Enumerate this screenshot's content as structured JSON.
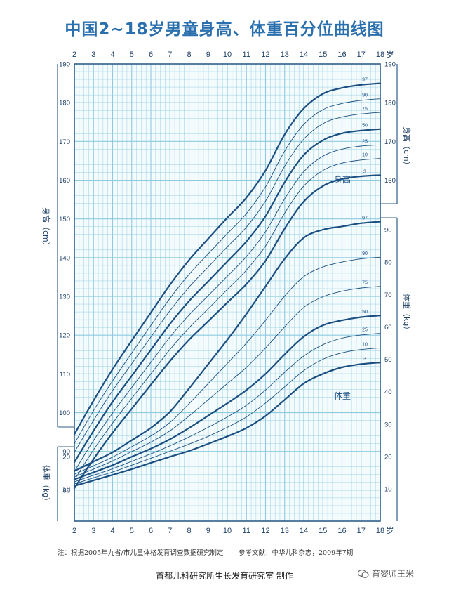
{
  "title": "中国2~18岁男童身高、体重百分位曲线图",
  "note": "注：根据2005年九省/市儿童体格发育调查数据研究制定",
  "reference": "参考文献：中华儿科杂志，2009年7期",
  "producer": "首都儿科研究所生长发育研究室  制作",
  "watermark": "育婴师王米",
  "chart_data": {
    "type": "line",
    "x_ticks": [
      "2",
      "3",
      "4",
      "5",
      "6",
      "7",
      "8",
      "9",
      "10",
      "11",
      "12",
      "13",
      "14",
      "15",
      "16",
      "17",
      "18"
    ],
    "x_unit": "岁",
    "height_axis": {
      "label": "身高",
      "unit": "（cm）",
      "range": [
        72,
        190
      ],
      "ticks": [
        "80",
        "90",
        "100",
        "110",
        "120",
        "130",
        "140",
        "150",
        "160",
        "170",
        "180",
        "190"
      ]
    },
    "weight_axis": {
      "label": "体重",
      "unit": "（kg）",
      "range": [
        0,
        100
      ],
      "ticks": [
        "10",
        "20",
        "30",
        "40",
        "50",
        "60",
        "70",
        "80",
        "90"
      ]
    },
    "height_label": "身高",
    "weight_label": "体重",
    "ages": [
      2,
      3,
      4,
      5,
      6,
      7,
      8,
      9,
      10,
      11,
      12,
      13,
      14,
      15,
      16,
      17,
      18
    ],
    "height_series": [
      {
        "name": "97",
        "major": true,
        "values": [
          94.4,
          103.1,
          111.2,
          118.6,
          125.8,
          133.0,
          139.4,
          144.9,
          150.3,
          155.5,
          162.5,
          171.8,
          178.5,
          182.3,
          183.8,
          184.6,
          185.0
        ]
      },
      {
        "name": "90",
        "major": false,
        "values": [
          92.0,
          100.5,
          108.2,
          115.4,
          122.5,
          129.5,
          135.7,
          141.0,
          146.2,
          151.4,
          158.3,
          167.5,
          174.4,
          178.2,
          179.8,
          180.6,
          181.0
        ]
      },
      {
        "name": "75",
        "major": false,
        "values": [
          89.8,
          98.0,
          105.7,
          112.6,
          119.5,
          126.3,
          132.4,
          137.6,
          142.8,
          147.9,
          154.6,
          163.6,
          170.6,
          174.6,
          176.3,
          177.1,
          177.5
        ]
      },
      {
        "name": "50",
        "major": true,
        "values": [
          87.2,
          95.3,
          102.8,
          109.5,
          116.2,
          122.9,
          128.8,
          133.9,
          139.0,
          144.2,
          150.7,
          159.5,
          166.5,
          170.3,
          172.1,
          172.8,
          173.2
        ]
      },
      {
        "name": "25",
        "major": false,
        "values": [
          84.8,
          92.8,
          99.9,
          106.5,
          113.0,
          119.5,
          125.2,
          130.2,
          135.2,
          140.3,
          146.7,
          155.2,
          162.2,
          166.2,
          168.0,
          168.8,
          169.1
        ]
      },
      {
        "name": "10",
        "major": false,
        "values": [
          82.6,
          90.4,
          97.3,
          103.7,
          110.0,
          116.3,
          121.9,
          126.8,
          131.8,
          136.8,
          143.0,
          151.5,
          158.5,
          162.5,
          164.4,
          165.2,
          165.6
        ]
      },
      {
        "name": "3",
        "major": true,
        "values": [
          80.5,
          88.0,
          94.8,
          101.0,
          107.2,
          113.3,
          118.8,
          123.6,
          128.4,
          133.2,
          139.2,
          147.5,
          154.5,
          158.5,
          160.3,
          161.0,
          161.3
        ]
      }
    ],
    "weight_series": [
      {
        "name": "97",
        "major": true,
        "values": [
          15.5,
          18.4,
          21.3,
          25.0,
          28.8,
          33.8,
          41.0,
          48.5,
          56.0,
          64.0,
          72.5,
          81.0,
          87.5,
          90.0,
          91.0,
          92.0,
          92.5
        ]
      },
      {
        "name": "90",
        "major": false,
        "values": [
          14.5,
          17.1,
          19.8,
          23.0,
          26.3,
          30.5,
          36.3,
          42.5,
          48.7,
          55.0,
          62.0,
          69.5,
          75.5,
          78.5,
          80.0,
          81.0,
          81.5
        ]
      },
      {
        "name": "75",
        "major": false,
        "values": [
          13.7,
          16.1,
          18.6,
          21.5,
          24.4,
          27.9,
          32.5,
          37.5,
          42.5,
          47.5,
          53.5,
          60.0,
          66.0,
          69.3,
          71.0,
          72.0,
          72.5
        ]
      },
      {
        "name": "50",
        "major": true,
        "values": [
          12.9,
          15.1,
          17.3,
          19.9,
          22.4,
          25.3,
          28.8,
          32.6,
          36.4,
          40.5,
          45.5,
          51.5,
          57.0,
          60.5,
          62.0,
          63.0,
          63.5
        ]
      },
      {
        "name": "25",
        "major": false,
        "values": [
          12.2,
          14.2,
          16.2,
          18.5,
          20.8,
          23.3,
          26.0,
          29.0,
          32.2,
          35.8,
          40.5,
          46.0,
          51.0,
          54.5,
          56.5,
          57.5,
          58.0
        ]
      },
      {
        "name": "10",
        "major": false,
        "values": [
          11.5,
          13.4,
          15.2,
          17.3,
          19.4,
          21.6,
          23.8,
          26.2,
          29.0,
          32.2,
          36.5,
          41.5,
          46.5,
          50.0,
          52.0,
          53.0,
          53.5
        ]
      },
      {
        "name": "3",
        "major": true,
        "values": [
          10.9,
          12.6,
          14.3,
          16.1,
          18.0,
          19.9,
          21.7,
          23.9,
          26.2,
          28.8,
          32.5,
          37.5,
          42.5,
          45.5,
          47.5,
          48.5,
          49.0
        ]
      }
    ],
    "colors": {
      "grid": "#8ecbe0",
      "frame": "#2f5f8a",
      "curve": "#1b4f82",
      "tick_text": "#1d3f66",
      "title": "#2a6fae"
    }
  }
}
